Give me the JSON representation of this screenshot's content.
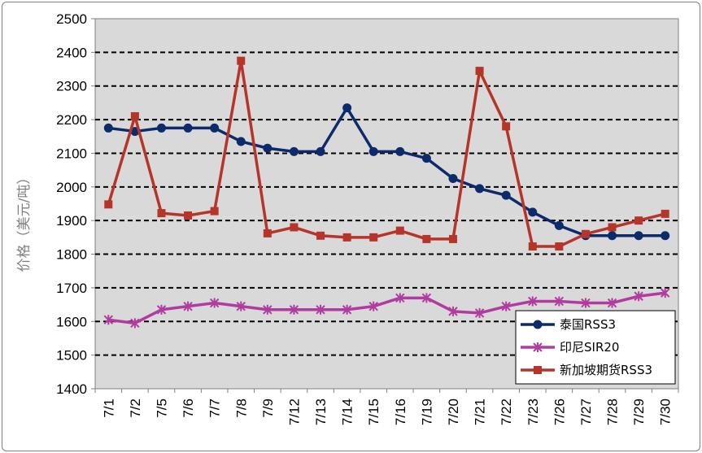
{
  "chart_data": {
    "type": "line",
    "ylabel": "价格（美元/吨）",
    "xlabel": "",
    "ylim": [
      1400,
      2500
    ],
    "ytick_step": 100,
    "grid": "horizontal dashed",
    "legend_position": "bottom-right",
    "plot_background": "#d9d9d9",
    "categories": [
      "7/1",
      "7/2",
      "7/5",
      "7/6",
      "7/7",
      "7/8",
      "7/9",
      "7/12",
      "7/13",
      "7/14",
      "7/15",
      "7/16",
      "7/19",
      "7/20",
      "7/21",
      "7/22",
      "7/23",
      "7/26",
      "7/27",
      "7/28",
      "7/29",
      "7/30"
    ],
    "series": [
      {
        "name": "泰国RSS3",
        "color": "#0d2a6b",
        "marker": "circle",
        "values": [
          2175,
          2165,
          2175,
          2175,
          2175,
          2135,
          2115,
          2105,
          2105,
          2235,
          2105,
          2105,
          2085,
          2025,
          1995,
          1975,
          1925,
          1885,
          1855,
          1855,
          1855,
          1855
        ]
      },
      {
        "name": "印尼SIR20",
        "color": "#b03ca0",
        "marker": "star",
        "values": [
          1605,
          1595,
          1635,
          1645,
          1655,
          1645,
          1635,
          1635,
          1635,
          1635,
          1645,
          1670,
          1670,
          1630,
          1625,
          1645,
          1660,
          1660,
          1655,
          1655,
          1675,
          1685
        ]
      },
      {
        "name": "新加坡期货RSS3",
        "color": "#b5352a",
        "marker": "square",
        "values": [
          1948,
          2210,
          1922,
          1915,
          1928,
          2375,
          1862,
          1880,
          1855,
          1850,
          1850,
          1870,
          1845,
          1845,
          2345,
          2180,
          1823,
          1823,
          1860,
          1880,
          1900,
          1920
        ]
      }
    ]
  }
}
